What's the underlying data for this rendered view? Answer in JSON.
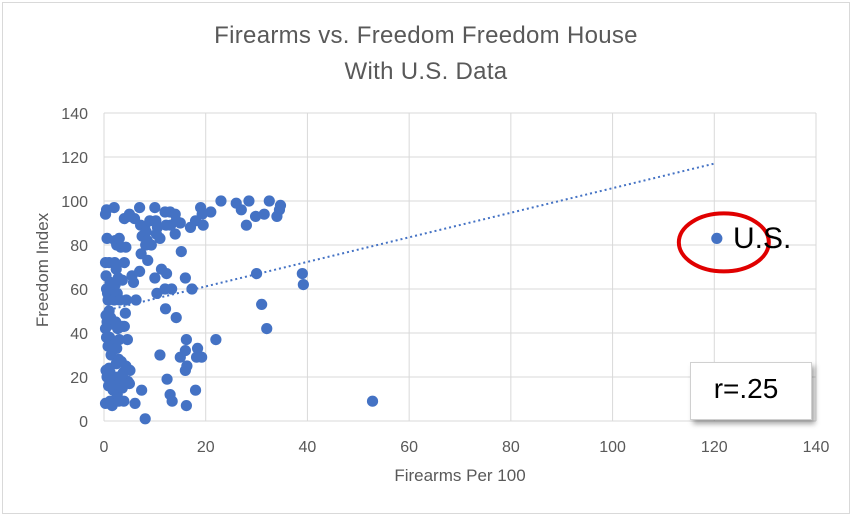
{
  "chart_data": {
    "type": "scatter",
    "title": "Firearms vs. Freedom Freedom House",
    "subtitle": "With U.S. Data",
    "xlabel": "Firearms Per 100",
    "ylabel": "Freedom Index",
    "xlim": [
      0,
      140
    ],
    "ylim": [
      0,
      140
    ],
    "x_ticks": [
      0,
      20,
      40,
      60,
      80,
      100,
      120,
      140
    ],
    "y_ticks": [
      0,
      20,
      40,
      60,
      80,
      100,
      120,
      140
    ],
    "grid": true,
    "marker_color": "#4472c4",
    "trendline": {
      "style": "dotted",
      "color": "#4472c4",
      "x": [
        0,
        120
      ],
      "y": [
        50,
        117
      ]
    },
    "annotation": {
      "label": "U.S.",
      "x": 120.5,
      "y": 83,
      "circle_color": "#e00000"
    },
    "stat_label": "r=.25",
    "points": [
      [
        0.3,
        94
      ],
      [
        0.5,
        96
      ],
      [
        0.6,
        83
      ],
      [
        0.3,
        72
      ],
      [
        0.4,
        66
      ],
      [
        0.5,
        60
      ],
      [
        0.7,
        58
      ],
      [
        0.8,
        55
      ],
      [
        0.4,
        48
      ],
      [
        0.6,
        45
      ],
      [
        0.3,
        42
      ],
      [
        0.5,
        38
      ],
      [
        0.8,
        34
      ],
      [
        0.4,
        23
      ],
      [
        0.6,
        20
      ],
      [
        0.9,
        16
      ],
      [
        0.3,
        8
      ],
      [
        1.0,
        72
      ],
      [
        1.2,
        63
      ],
      [
        1.5,
        60
      ],
      [
        1.0,
        50
      ],
      [
        1.3,
        47
      ],
      [
        1.6,
        44
      ],
      [
        1.1,
        38
      ],
      [
        1.4,
        30
      ],
      [
        1.0,
        24
      ],
      [
        1.2,
        22
      ],
      [
        1.5,
        18
      ],
      [
        1.8,
        14
      ],
      [
        1.2,
        9
      ],
      [
        1.6,
        7
      ],
      [
        2.0,
        97
      ],
      [
        2.2,
        82
      ],
      [
        2.5,
        80
      ],
      [
        2.1,
        72
      ],
      [
        2.4,
        69
      ],
      [
        2.8,
        65
      ],
      [
        2.2,
        62
      ],
      [
        2.6,
        58
      ],
      [
        2.0,
        55
      ],
      [
        2.3,
        45
      ],
      [
        2.7,
        42
      ],
      [
        2.1,
        35
      ],
      [
        2.5,
        33
      ],
      [
        2.9,
        28
      ],
      [
        2.4,
        26
      ],
      [
        2.8,
        20
      ],
      [
        2.2,
        14
      ],
      [
        2.6,
        12
      ],
      [
        2.9,
        9
      ],
      [
        3.0,
        83
      ],
      [
        3.3,
        79
      ],
      [
        3.6,
        64
      ],
      [
        3.1,
        55
      ],
      [
        3.5,
        43
      ],
      [
        3.0,
        37
      ],
      [
        3.4,
        27
      ],
      [
        3.8,
        22
      ],
      [
        3.2,
        18
      ],
      [
        3.6,
        15
      ],
      [
        3.9,
        9
      ],
      [
        4.0,
        92
      ],
      [
        4.3,
        79
      ],
      [
        4.0,
        72
      ],
      [
        4.4,
        55
      ],
      [
        4.2,
        49
      ],
      [
        4.0,
        43
      ],
      [
        4.6,
        37
      ],
      [
        4.3,
        25
      ],
      [
        4.7,
        18
      ],
      [
        4.1,
        17
      ],
      [
        5.0,
        94
      ],
      [
        5.2,
        93
      ],
      [
        5.5,
        66
      ],
      [
        5.8,
        63
      ],
      [
        5.1,
        23
      ],
      [
        5.0,
        17
      ],
      [
        6.0,
        92
      ],
      [
        6.3,
        55
      ],
      [
        6.1,
        8
      ],
      [
        7.0,
        97
      ],
      [
        7.2,
        89
      ],
      [
        7.5,
        84
      ],
      [
        7.3,
        76
      ],
      [
        7.0,
        68
      ],
      [
        7.4,
        14
      ],
      [
        8.0,
        88
      ],
      [
        8.3,
        86
      ],
      [
        8.5,
        82
      ],
      [
        8.2,
        80
      ],
      [
        8.6,
        73
      ],
      [
        8.1,
        1
      ],
      [
        9.0,
        91
      ],
      [
        9.3,
        80
      ],
      [
        10.0,
        97
      ],
      [
        10.2,
        91
      ],
      [
        10.5,
        88
      ],
      [
        10.3,
        85
      ],
      [
        10.0,
        65
      ],
      [
        10.4,
        58
      ],
      [
        11.0,
        83
      ],
      [
        11.3,
        69
      ],
      [
        11.0,
        30
      ],
      [
        12.0,
        95
      ],
      [
        12.2,
        89
      ],
      [
        12.3,
        67
      ],
      [
        12.0,
        60
      ],
      [
        12.1,
        51
      ],
      [
        12.4,
        19
      ],
      [
        13.0,
        95
      ],
      [
        13.1,
        89
      ],
      [
        13.3,
        60
      ],
      [
        13.0,
        12
      ],
      [
        13.4,
        9
      ],
      [
        14.0,
        94
      ],
      [
        14.2,
        91
      ],
      [
        14.0,
        85
      ],
      [
        14.2,
        47
      ],
      [
        15.0,
        90
      ],
      [
        15.2,
        77
      ],
      [
        15.0,
        29
      ],
      [
        16.0,
        65
      ],
      [
        16.2,
        37
      ],
      [
        16.0,
        32
      ],
      [
        16.3,
        25
      ],
      [
        16.0,
        23
      ],
      [
        16.2,
        7
      ],
      [
        17.0,
        88
      ],
      [
        17.3,
        60
      ],
      [
        18.0,
        91
      ],
      [
        18.2,
        29
      ],
      [
        18.4,
        33
      ],
      [
        18.0,
        14
      ],
      [
        19.0,
        97
      ],
      [
        19.3,
        94
      ],
      [
        19.5,
        89
      ],
      [
        19.2,
        29
      ],
      [
        21.0,
        95
      ],
      [
        22.0,
        37
      ],
      [
        23.0,
        100
      ],
      [
        26.0,
        99
      ],
      [
        27.0,
        96
      ],
      [
        28.0,
        89
      ],
      [
        28.5,
        100
      ],
      [
        29.8,
        93
      ],
      [
        30.0,
        67
      ],
      [
        31.0,
        53
      ],
      [
        31.5,
        94
      ],
      [
        32.0,
        42
      ],
      [
        32.5,
        100
      ],
      [
        34.0,
        93
      ],
      [
        34.5,
        96
      ],
      [
        34.7,
        98
      ],
      [
        39.0,
        67
      ],
      [
        39.2,
        62
      ],
      [
        52.8,
        9
      ],
      [
        120.5,
        83
      ]
    ]
  }
}
